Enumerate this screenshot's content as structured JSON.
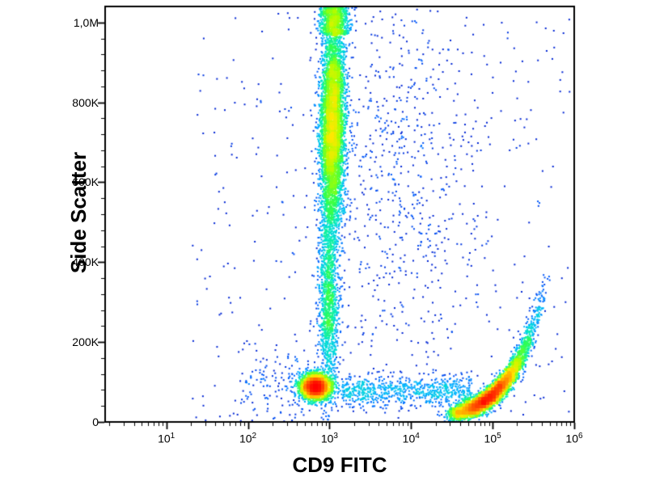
{
  "chart_data": {
    "type": "scatter",
    "subtype": "flow-cytometry-pseudocolor-density-dot-plot",
    "title": "",
    "xlabel": "CD9 FITC",
    "ylabel": "Side Scatter",
    "x_scale": "log10",
    "x_range_log10": [
      0.25,
      6.0
    ],
    "x_ticks": [
      {
        "base": "10",
        "exp": "1"
      },
      {
        "base": "10",
        "exp": "2"
      },
      {
        "base": "10",
        "exp": "3"
      },
      {
        "base": "10",
        "exp": "4"
      },
      {
        "base": "10",
        "exp": "5"
      },
      {
        "base": "10",
        "exp": "6"
      }
    ],
    "y_scale": "linear",
    "y_range": [
      0,
      1040000
    ],
    "y_ticks": [
      {
        "value": 0,
        "label": "0"
      },
      {
        "value": 200000,
        "label": "200K"
      },
      {
        "value": 400000,
        "label": "400K"
      },
      {
        "value": 600000,
        "label": "600K"
      },
      {
        "value": 800000,
        "label": "800K"
      },
      {
        "value": 1000000,
        "label": "1,0M"
      }
    ],
    "y_minor_tick_interval": 40000,
    "grid": false,
    "legend": false,
    "colormap": "jet-density",
    "palette": [
      {
        "t": 0.0,
        "color": "#00008C"
      },
      {
        "t": 0.12,
        "color": "#0020D0"
      },
      {
        "t": 0.25,
        "color": "#0060FF"
      },
      {
        "t": 0.4,
        "color": "#00B4FF"
      },
      {
        "t": 0.52,
        "color": "#00E8C8"
      },
      {
        "t": 0.62,
        "color": "#30FF50"
      },
      {
        "t": 0.72,
        "color": "#A8FF00"
      },
      {
        "t": 0.8,
        "color": "#FFE800"
      },
      {
        "t": 0.9,
        "color": "#FF7800"
      },
      {
        "t": 1.0,
        "color": "#FF0000"
      }
    ],
    "populations": [
      {
        "name": "cd9neg-low-ssc-cluster",
        "count": 2600,
        "logx": {
          "mean": 2.83,
          "sd": 0.1
        },
        "y": {
          "mean": 88000,
          "sd": 16000
        }
      },
      {
        "name": "vertical-ssc-streak-core",
        "count": 5200,
        "logx": {
          "mean": 3.03,
          "sd": 0.075
        },
        "y": {
          "mean": 740000,
          "sd": 140000
        },
        "tilt": 6e-08,
        "tiltRef": 600000
      },
      {
        "name": "vertical-ssc-streak-lower-tail",
        "count": 1300,
        "logx": {
          "mean": 2.99,
          "sd": 0.06
        },
        "y": {
          "mean": 300000,
          "sd": 120000
        }
      },
      {
        "name": "top-edge-cluster",
        "count": 750,
        "logx": {
          "mean": 3.06,
          "sd": 0.09
        },
        "y": {
          "min": 970000,
          "max": 1039000
        }
      },
      {
        "name": "cd9pos-comet",
        "count": 4800,
        "comet": {
          "logx0": 4.97,
          "logxSlope": 0.26,
          "logxNoise": 0.045,
          "y0": 62000,
          "yGrowth": 0.68,
          "yNoise": 11000,
          "tMin": -2.0,
          "tMax": 2.6
        }
      },
      {
        "name": "low-ssc-horizontal-band",
        "count": 750,
        "logx": {
          "min": 3.15,
          "max": 4.75
        },
        "y": {
          "mean": 78000,
          "sd": 20000
        }
      },
      {
        "name": "mid-scatter-cloud",
        "count": 600,
        "logx": {
          "mean": 3.9,
          "sd": 0.55
        },
        "y": {
          "mean": 620000,
          "sd": 280000
        }
      },
      {
        "name": "sparse-background",
        "count": 380,
        "logx": {
          "min": 1.3,
          "max": 5.95
        },
        "y": {
          "min": 4000,
          "max": 1030000
        }
      },
      {
        "name": "left-low-sparse",
        "count": 130,
        "logx": {
          "min": 1.9,
          "max": 2.75
        },
        "y": {
          "mean": 90000,
          "sd": 45000
        }
      }
    ]
  }
}
